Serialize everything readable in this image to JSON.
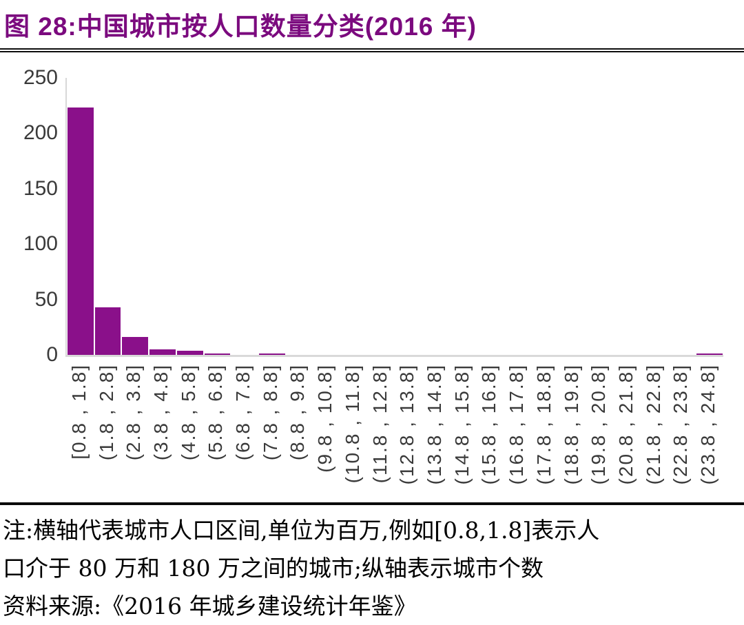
{
  "figure": {
    "title": "图 28:中国城市按人口数量分类(2016 年)"
  },
  "chart_data": {
    "type": "bar",
    "title": "中国城市按人口数量分类(2016 年)",
    "categories": [
      "[0.8 , 1.8]",
      "(1.8 , 2.8]",
      "(2.8 , 3.8]",
      "(3.8 , 4.8]",
      "(4.8 , 5.8]",
      "(5.8 , 6.8]",
      "(6.8 , 7.8]",
      "(7.8 , 8.8]",
      "(8.8 , 9.8]",
      "(9.8 , 10.8]",
      "(10.8 , 11.8]",
      "(11.8 , 12.8]",
      "(12.8 , 13.8]",
      "(13.8 , 14.8]",
      "(14.8 , 15.8]",
      "(15.8 , 16.8]",
      "(16.8 , 17.8]",
      "(17.8 , 18.8]",
      "(18.8 , 19.8]",
      "(19.8 , 20.8]",
      "(20.8 , 21.8]",
      "(21.8 , 22.8]",
      "(22.8 , 23.8]",
      "(23.8 , 24.8]"
    ],
    "values": [
      223,
      43,
      16,
      5,
      4,
      1,
      0,
      1,
      0,
      0,
      0,
      0,
      0,
      0,
      0,
      0,
      0,
      0,
      0,
      0,
      0,
      0,
      0,
      1
    ],
    "xlabel": "",
    "ylabel": "",
    "ylim": [
      0,
      250
    ],
    "y_ticks": [
      0,
      50,
      100,
      150,
      200,
      250
    ],
    "grid": false,
    "legend": "none",
    "bar_color": "#8a108a",
    "axis_color": "#d9d9d9",
    "tick_label_color": "#3a3a3a"
  },
  "notes": {
    "line1": "注:横轴代表城市人口区间,单位为百万,例如[0.8,1.8]表示人",
    "line2": "口介于 80 万和 180 万之间的城市;纵轴表示城市个数",
    "line3": "资料来源:《2016 年城乡建设统计年鉴》"
  },
  "colors": {
    "title": "#7b0a7e",
    "separator": "#000000"
  }
}
